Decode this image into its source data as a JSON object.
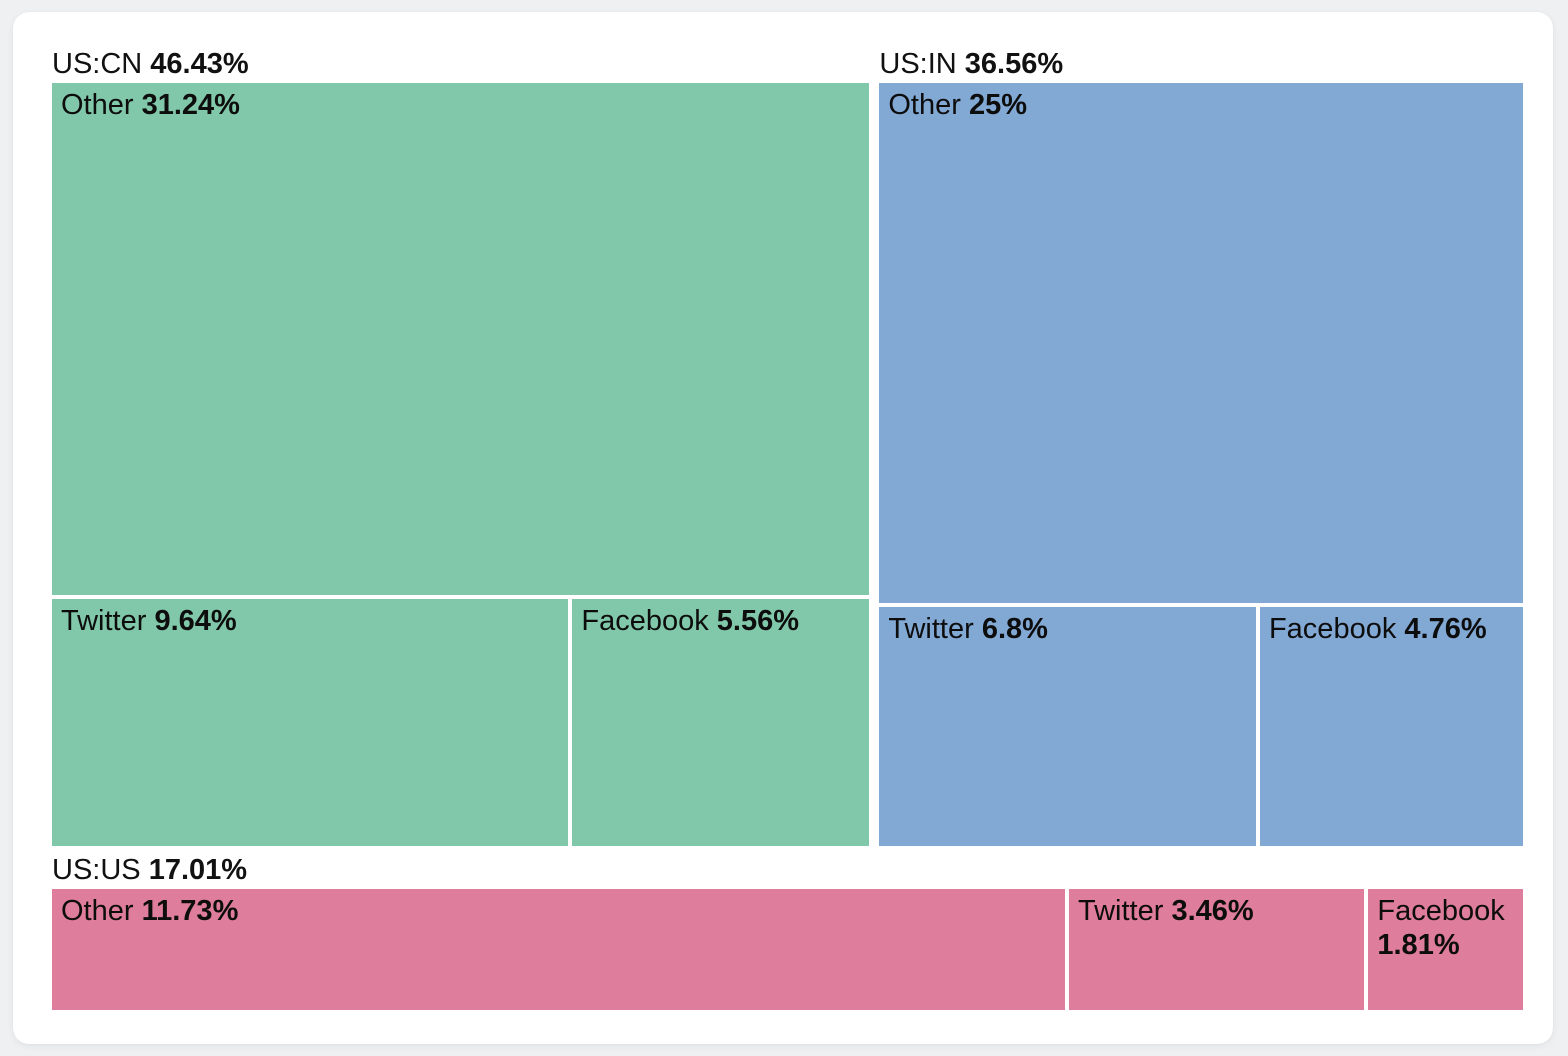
{
  "page": {
    "background_color": "#eef0f2",
    "card_color": "#ffffff",
    "text_color": "#111111"
  },
  "chart_data": {
    "type": "treemap",
    "title": "",
    "unit": "%",
    "legend": "none",
    "groups": [
      {
        "label": "US:CN",
        "value": 46.43,
        "value_display": "46.43%",
        "color": "#80c8a9",
        "arrangement": "stack",
        "children": [
          {
            "label": "Other",
            "value": 31.24,
            "value_display": "31.24%"
          },
          {
            "label": "Twitter",
            "value": 9.64,
            "value_display": "9.64%"
          },
          {
            "label": "Facebook",
            "value": 5.56,
            "value_display": "5.56%"
          }
        ]
      },
      {
        "label": "US:IN",
        "value": 36.56,
        "value_display": "36.56%",
        "color": "#82a8d4",
        "arrangement": "stack",
        "children": [
          {
            "label": "Other",
            "value": 25,
            "value_display": "25%"
          },
          {
            "label": "Twitter",
            "value": 6.8,
            "value_display": "6.8%"
          },
          {
            "label": "Facebook",
            "value": 4.76,
            "value_display": "4.76%"
          }
        ]
      },
      {
        "label": "US:US",
        "value": 17.01,
        "value_display": "17.01%",
        "color": "#df7d9c",
        "arrangement": "row",
        "children": [
          {
            "label": "Other",
            "value": 11.73,
            "value_display": "11.73%"
          },
          {
            "label": "Twitter",
            "value": 3.46,
            "value_display": "3.46%"
          },
          {
            "label": "Facebook",
            "value": 1.81,
            "value_display": "1.81%"
          }
        ]
      }
    ],
    "layout": {
      "bands": [
        [
          0,
          1
        ],
        [
          2
        ]
      ],
      "gap_between_groups": 10,
      "gap_between_cells": 4
    }
  }
}
